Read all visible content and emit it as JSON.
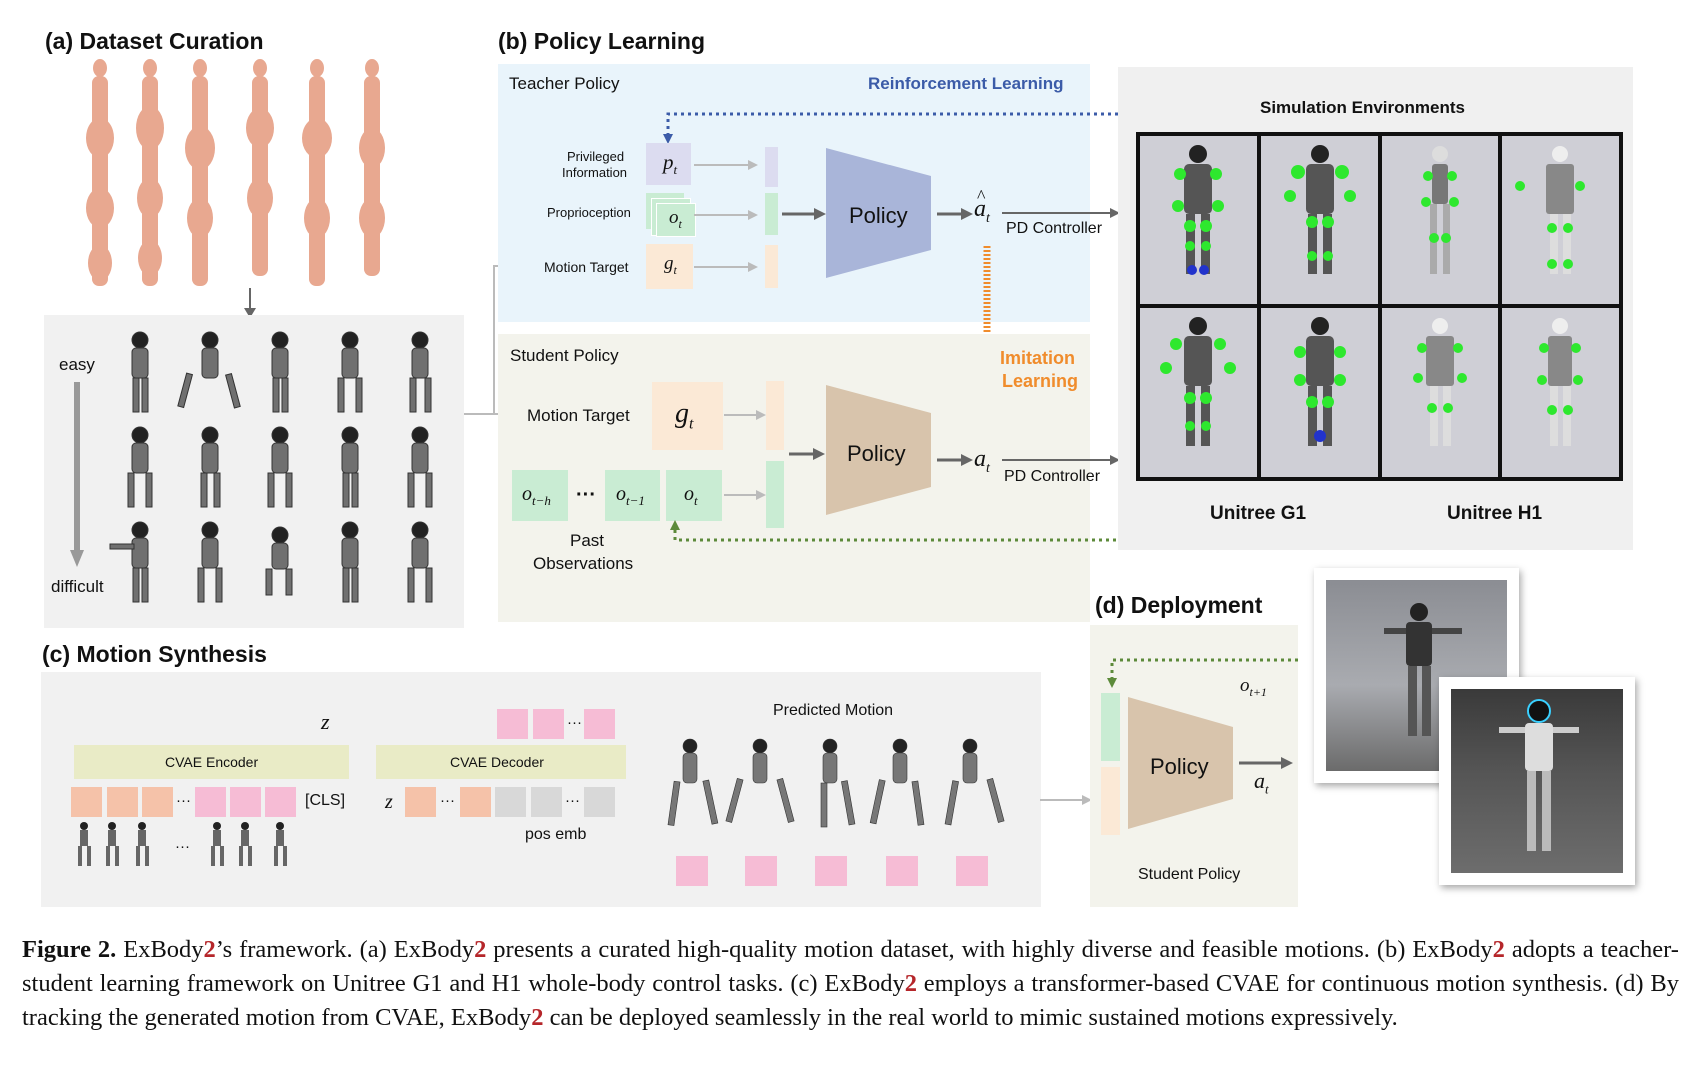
{
  "panels": {
    "a": {
      "title": "(a) Dataset Curation",
      "easy": "easy",
      "difficult": "difficult"
    },
    "b": {
      "title": "(b) Policy Learning",
      "teacher_title": "Teacher Policy",
      "rl_label": "Reinforcement Learning",
      "privileged": [
        "Privileged",
        "Information"
      ],
      "proprioception": "Proprioception",
      "motion_target_small": "Motion Target",
      "policy": "Policy",
      "pd_controller": "PD Controller",
      "student_title": "Student Policy",
      "imitation": [
        "Imitation",
        "Learning"
      ],
      "motion_target": "Motion Target",
      "past_obs": [
        "Past",
        "Observations"
      ],
      "sym_p": "p",
      "sym_o": "o",
      "sym_g": "g",
      "sym_a": "a",
      "sub_t": "t",
      "sub_th": "t−h",
      "sub_t1": "t−1",
      "dots": "···",
      "hat": "^"
    },
    "sim": {
      "title": "Simulation Environments",
      "g1": "Unitree G1",
      "h1": "Unitree H1"
    },
    "c": {
      "title": "(c) Motion Synthesis",
      "encoder": "CVAE Encoder",
      "decoder": "CVAE Decoder",
      "cls": "[CLS]",
      "z": "z",
      "pos_emb": "pos emb",
      "predicted": "Predicted Motion",
      "dots": "···"
    },
    "d": {
      "title": "(d) Deployment",
      "policy": "Policy",
      "student": "Student Policy",
      "sym_o": "o",
      "sub_t1": "t+1",
      "sym_a": "a",
      "sub_t": "t"
    }
  },
  "colors": {
    "rl_blue": "#3b5ba8",
    "il_orange": "#f08c2c",
    "policy_blue": "#a9b5d9",
    "policy_tan": "#d8c4ac",
    "marker_green": "#2ee82e",
    "dotted_green": "#5c8a3a",
    "ex2_red": "#b5262a"
  },
  "caption": {
    "lead": "Figure 2.",
    "p1": " ExBody",
    "two": "2",
    "p2": "’s framework. (a) ExBody",
    "p3": " presents a curated high-quality motion dataset, with highly diverse and feasible motions. (b) ExBody",
    "p4": " adopts a teacher-student learning framework on Unitree G1 and H1 whole-body control tasks. (c) ExBody",
    "p5": " employs a transformer-based CVAE for continuous motion synthesis. (d) By tracking the generated motion from CVAE, ExBody",
    "p6": " can be deployed seamlessly in the real world to mimic sustained motions expressively."
  }
}
